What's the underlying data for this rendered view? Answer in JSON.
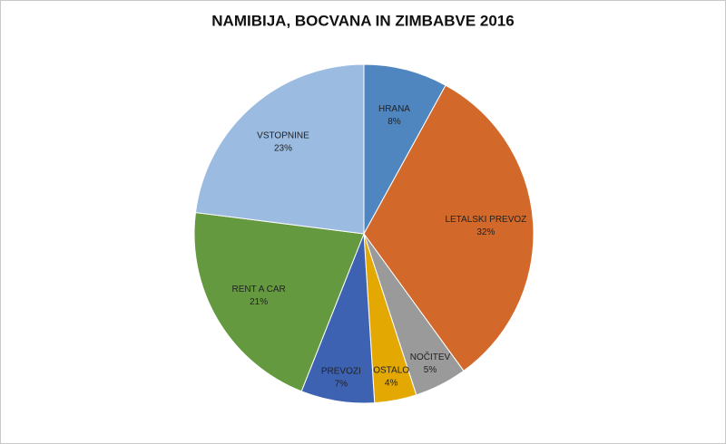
{
  "chart_data": {
    "type": "pie",
    "title": "NAMIBIJA, BOCVANA IN ZIMBABVE 2016",
    "categories": [
      "HRANA",
      "LETALSKI PREVOZ",
      "NOČITEV",
      "OSTALO",
      "PREVOZI",
      "RENT A CAR",
      "VSTOPNINE"
    ],
    "values": [
      8,
      32,
      5,
      4,
      7,
      21,
      23
    ],
    "value_labels": [
      "8%",
      "32%",
      "5%",
      "4%",
      "7%",
      "21%",
      "23%"
    ],
    "colors": [
      "#4f86bf",
      "#d2692a",
      "#9a9a9a",
      "#e3a802",
      "#3d62b2",
      "#64993f",
      "#9bbbe0"
    ]
  }
}
